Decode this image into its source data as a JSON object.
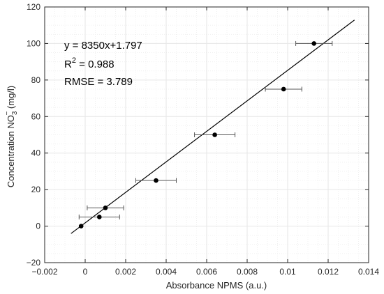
{
  "chart_data": {
    "type": "scatter",
    "xlabel": "Absorbance NPMS (a.u.)",
    "ylabel": {
      "prefix": "Concentration NO",
      "sub": "3",
      "sup": "−",
      "suffix": " (mg/l)"
    },
    "xlim": [
      -0.002,
      0.014
    ],
    "ylim": [
      -20,
      120
    ],
    "xticks": [
      -0.002,
      0,
      0.002,
      0.004,
      0.006,
      0.008,
      0.01,
      0.012,
      0.014
    ],
    "xtick_labels": [
      "−0.002",
      "0",
      "0.002",
      "0.004",
      "0.006",
      "0.008",
      "0.01",
      "0.012",
      "0.014"
    ],
    "yticks": [
      -20,
      0,
      20,
      40,
      60,
      80,
      100,
      120
    ],
    "ytick_labels": [
      "−20",
      "0",
      "20",
      "40",
      "60",
      "80",
      "100",
      "120"
    ],
    "grid": true,
    "minor_grid": true,
    "points": [
      {
        "x": -0.0002,
        "y": 0,
        "xerr": null
      },
      {
        "x": 0.0007,
        "y": 5,
        "xerr": 0.001
      },
      {
        "x": 0.001,
        "y": 10,
        "xerr": 0.0009
      },
      {
        "x": 0.0035,
        "y": 25,
        "xerr": 0.001
      },
      {
        "x": 0.0064,
        "y": 50,
        "xerr": 0.001
      },
      {
        "x": 0.0098,
        "y": 75,
        "xerr": 0.0009
      },
      {
        "x": 0.0113,
        "y": 100,
        "xerr": 0.0009
      }
    ],
    "fit_line": {
      "slope": 8350,
      "intercept": 1.797,
      "x_start": -0.0007,
      "x_end": 0.0133
    },
    "annotations": {
      "equation": "y = 8350x+1.797",
      "r2_prefix": "R",
      "r2_sup": "2",
      "r2_suffix": " = 0.988",
      "rmse": "RMSE = 3.789"
    },
    "colors": {
      "marker": "#000000",
      "errorbar": "#555555",
      "fit": "#000000"
    }
  }
}
